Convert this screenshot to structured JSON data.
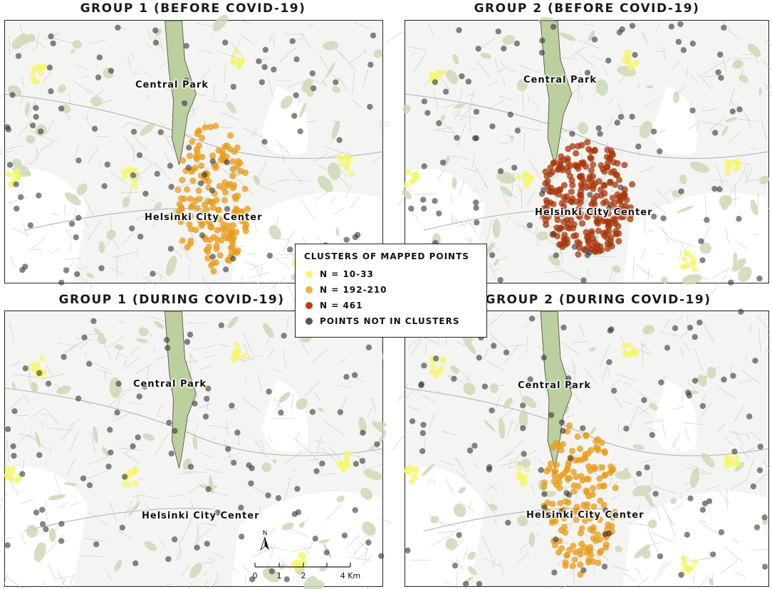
{
  "panels": [
    {
      "title": "GROUP 1 (BEFORE COVID-19)",
      "labels": {
        "park": "Central Park",
        "center": "Helsinki City Center"
      },
      "clusters": [
        "orange",
        "yellow"
      ]
    },
    {
      "title": "GROUP 2 (BEFORE COVID-19)",
      "labels": {
        "park": "Central Park",
        "center": "Helsinki City Center"
      },
      "clusters": [
        "red",
        "yellow"
      ]
    },
    {
      "title": "GROUP 1 (DURING COVID-19)",
      "labels": {
        "park": "Central Park",
        "center": "Helsinki City Center"
      },
      "clusters": [
        "yellow"
      ]
    },
    {
      "title": "GROUP 2 (DURING COVID-19)",
      "labels": {
        "park": "Central Park",
        "center": "Helsinki City Center"
      },
      "clusters": [
        "orange",
        "yellow"
      ]
    }
  ],
  "legend": {
    "title": "CLUSTERS OF MAPPED POINTS",
    "items": [
      {
        "label": "N = 10-33",
        "color": "#f5f37a"
      },
      {
        "label": "N = 192-210",
        "color": "#f0b048"
      },
      {
        "label": "N = 461",
        "color": "#b5400e"
      },
      {
        "label": "POINTS NOT IN CLUSTERS",
        "color": "#555555"
      }
    ]
  },
  "scale": {
    "north": "N",
    "ticks": [
      "0",
      "1",
      "2",
      "4 Km"
    ]
  },
  "colors": {
    "park": "#bccf9e",
    "greenery": "#cdd9b6",
    "roads": "#c6c6c6",
    "orange": "#e89a18",
    "red": "#a8360a",
    "yellow": "#f5f56a",
    "gray": "#333333"
  }
}
